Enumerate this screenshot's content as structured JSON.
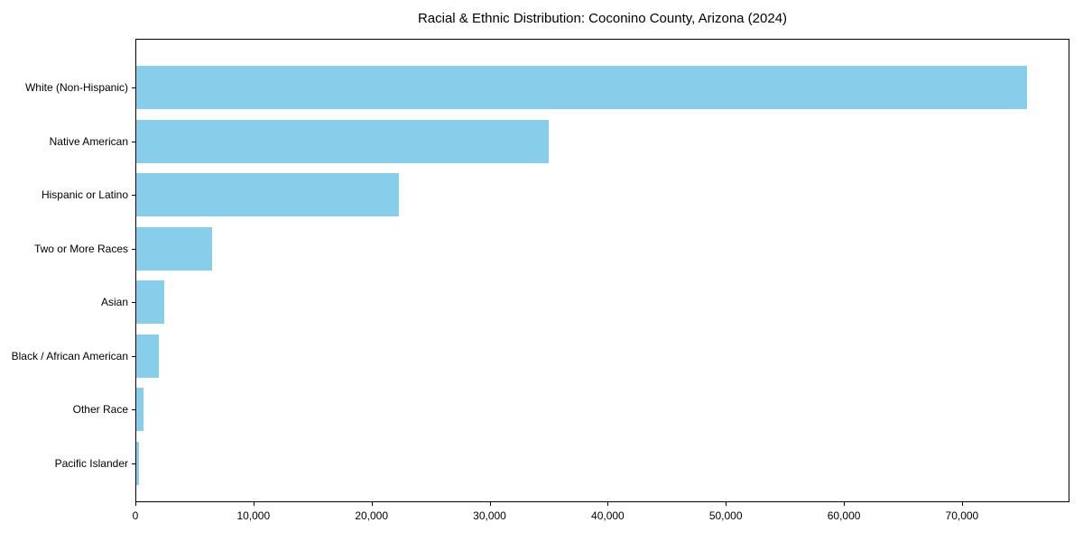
{
  "chart_data": {
    "type": "bar",
    "orientation": "horizontal",
    "title": "Racial & Ethnic Distribution: Coconino County, Arizona (2024)",
    "categories": [
      "White (Non-Hispanic)",
      "Native American",
      "Hispanic or Latino",
      "Two or More Races",
      "Asian",
      "Black / African American",
      "Other Race",
      "Pacific Islander"
    ],
    "values": [
      75400,
      34900,
      22200,
      6450,
      2400,
      1900,
      600,
      200
    ],
    "xlabel": "",
    "ylabel": "",
    "xlim": [
      0,
      79100
    ],
    "xticks": [
      0,
      10000,
      20000,
      30000,
      40000,
      50000,
      60000,
      70000
    ],
    "xtick_labels": [
      "0",
      "10,000",
      "20,000",
      "30,000",
      "40,000",
      "50,000",
      "60,000",
      "70,000"
    ],
    "bar_color": "#87CEEB",
    "grid": false,
    "legend": "none",
    "plot_border": "#000000"
  }
}
